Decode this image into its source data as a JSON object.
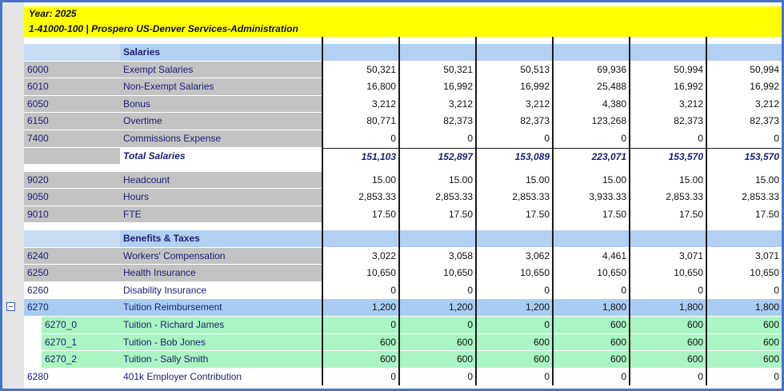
{
  "header": {
    "year": "Year:  2025",
    "entity": "1-41000-100  |  Prospero US-Denver Services-Administration"
  },
  "blocks": [
    {
      "title": "Salaries",
      "rows": [
        {
          "code": "6000",
          "name": "Exempt Salaries",
          "values": [
            "50,321",
            "50,321",
            "50,513",
            "69,936",
            "50,994",
            "50,994"
          ]
        },
        {
          "code": "6010",
          "name": "Non-Exempt Salaries",
          "values": [
            "16,800",
            "16,992",
            "16,992",
            "25,488",
            "16,992",
            "16,992"
          ]
        },
        {
          "code": "6050",
          "name": "Bonus",
          "values": [
            "3,212",
            "3,212",
            "3,212",
            "4,380",
            "3,212",
            "3,212"
          ]
        },
        {
          "code": "6150",
          "name": "Overtime",
          "values": [
            "80,771",
            "82,373",
            "82,373",
            "123,268",
            "82,373",
            "82,373"
          ]
        },
        {
          "code": "7400",
          "name": "Commissions Expense",
          "values": [
            "0",
            "0",
            "0",
            "0",
            "0",
            "0"
          ]
        }
      ],
      "total": {
        "name": "Total Salaries",
        "values": [
          "151,103",
          "152,897",
          "153,089",
          "223,071",
          "153,570",
          "153,570"
        ]
      }
    },
    {
      "rows": [
        {
          "code": "9020",
          "name": "Headcount",
          "values": [
            "15.00",
            "15.00",
            "15.00",
            "15.00",
            "15.00",
            "15.00"
          ]
        },
        {
          "code": "9050",
          "name": "Hours",
          "values": [
            "2,853.33",
            "2,853.33",
            "2,853.33",
            "3,933.33",
            "2,853.33",
            "2,853.33"
          ]
        },
        {
          "code": "9010",
          "name": "FTE",
          "values": [
            "17.50",
            "17.50",
            "17.50",
            "17.50",
            "17.50",
            "17.50"
          ]
        }
      ]
    },
    {
      "title": "Benefits & Taxes",
      "rows": [
        {
          "code": "6240",
          "name": "Workers' Compensation",
          "values": [
            "3,022",
            "3,058",
            "3,062",
            "4,461",
            "3,071",
            "3,071"
          ]
        },
        {
          "code": "6250",
          "name": "Health Insurance",
          "values": [
            "10,650",
            "10,650",
            "10,650",
            "10,650",
            "10,650",
            "10,650"
          ]
        },
        {
          "code": "6260",
          "name": "Disability Insurance",
          "values": [
            "0",
            "0",
            "0",
            "0",
            "0",
            "0"
          ],
          "color": "#ffffff"
        },
        {
          "code": "6270",
          "name": "Tuition Reimbursement",
          "values": [
            "1,200",
            "1,200",
            "1,200",
            "1,800",
            "1,800",
            "1,800"
          ],
          "color": "#a9cdf2",
          "children": [
            {
              "code": "6270_0",
              "name": "Tuition - Richard James",
              "values": [
                "0",
                "0",
                "0",
                "600",
                "600",
                "600"
              ],
              "color": "#aaf5c4"
            },
            {
              "code": "6270_1",
              "name": "Tuition - Bob Jones",
              "values": [
                "600",
                "600",
                "600",
                "600",
                "600",
                "600"
              ],
              "color": "#aaf5c4"
            },
            {
              "code": "6270_2",
              "name": "Tuition - Sally Smith",
              "values": [
                "600",
                "600",
                "600",
                "600",
                "600",
                "600"
              ],
              "color": "#aaf5c4"
            }
          ]
        },
        {
          "code": "6280",
          "name": "401k Employer Contribution",
          "values": [
            "0",
            "0",
            "0",
            "0",
            "0",
            "0"
          ],
          "color": "#ffffff"
        }
      ]
    }
  ]
}
